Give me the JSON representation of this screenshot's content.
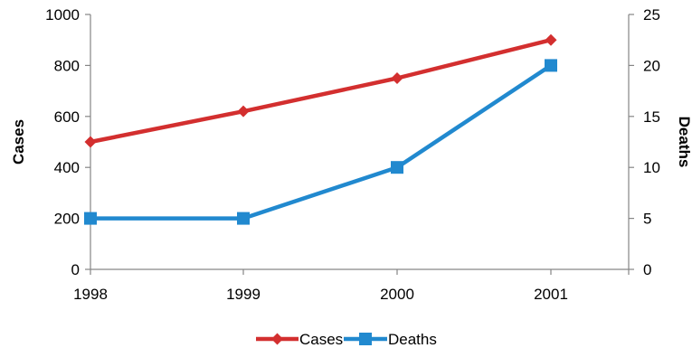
{
  "chart_data": {
    "type": "line",
    "x": [
      "1998",
      "1999",
      "2000",
      "2001"
    ],
    "y_left": {
      "label": "Cases",
      "range": [
        0,
        1000
      ],
      "ticks": [
        "0",
        "200",
        "400",
        "600",
        "800",
        "1000"
      ]
    },
    "y_right": {
      "label": "Deaths",
      "range": [
        0,
        25
      ],
      "ticks": [
        "0",
        "5",
        "10",
        "15",
        "20",
        "25"
      ]
    },
    "series": [
      {
        "name": "Cases",
        "axis": "left",
        "values": [
          500,
          620,
          750,
          900
        ],
        "color": "#d32f2f",
        "marker": "diamond"
      },
      {
        "name": "Deaths",
        "axis": "right",
        "values": [
          5,
          5,
          10,
          20
        ],
        "color": "#2189cf",
        "marker": "square"
      }
    ],
    "grid": false,
    "legend_position": "bottom"
  }
}
